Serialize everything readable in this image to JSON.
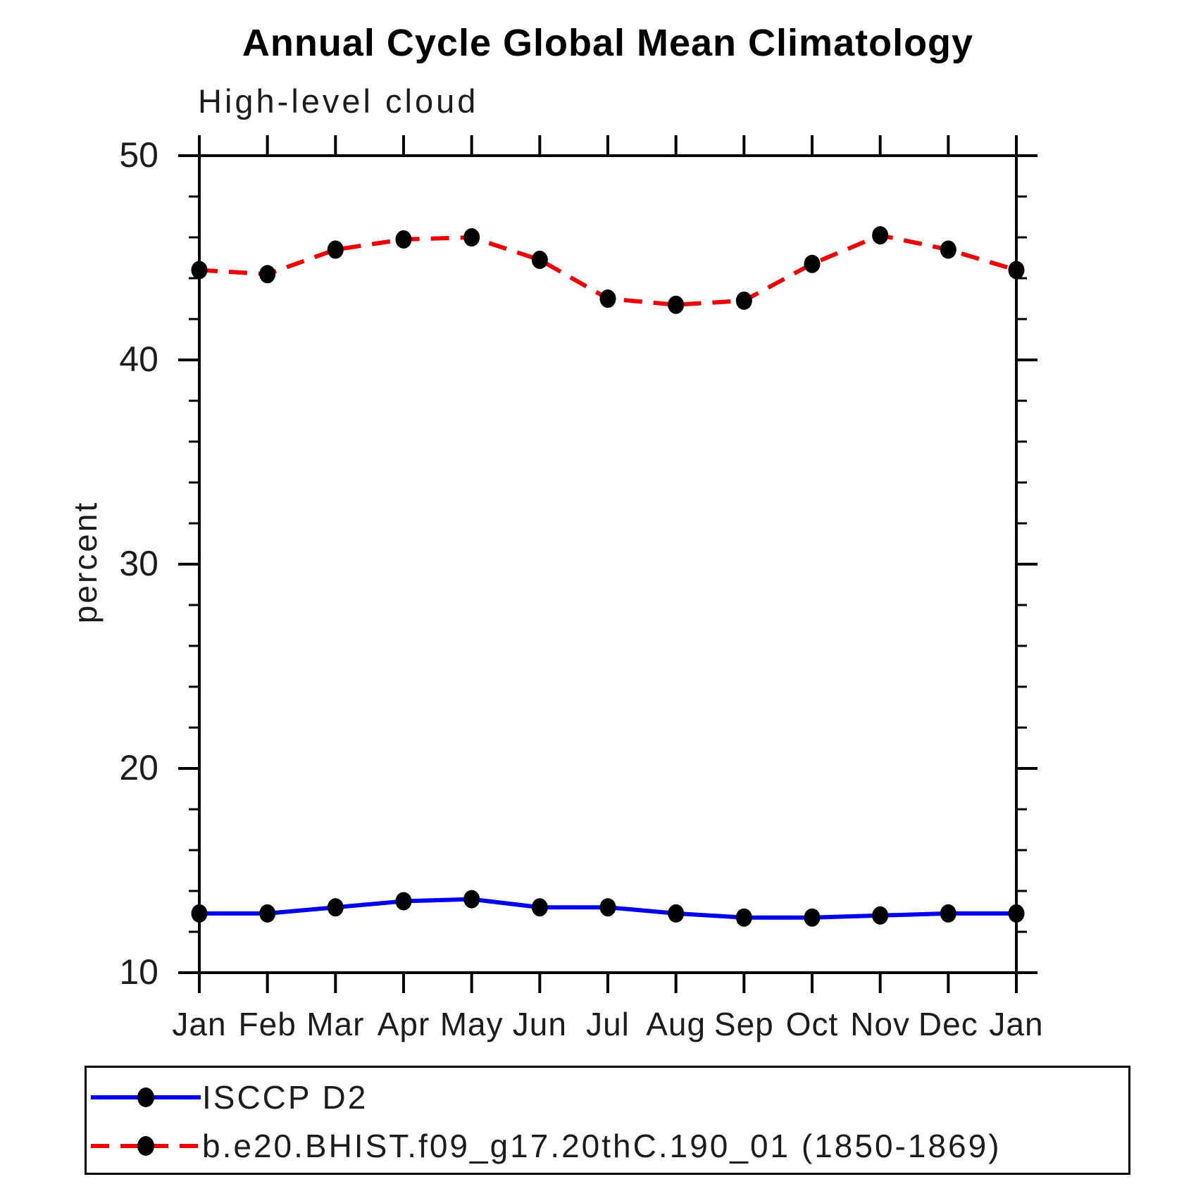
{
  "chart_data": {
    "type": "line",
    "title": "Annual Cycle Global Mean Climatology",
    "subtitle": "High-level cloud",
    "xlabel": "",
    "ylabel": "percent",
    "ylim": [
      10,
      50
    ],
    "ytick_major": [
      50,
      40,
      30,
      20,
      10
    ],
    "ytick_minor_step": 2,
    "grid": false,
    "legend_position": "bottom",
    "categories": [
      "Jan",
      "Feb",
      "Mar",
      "Apr",
      "May",
      "Jun",
      "Jul",
      "Aug",
      "Sep",
      "Oct",
      "Nov",
      "Dec",
      "Jan"
    ],
    "series": [
      {
        "name": "ISCCP D2",
        "line_style": "solid",
        "line_color": "#0000ee",
        "marker": "filled-circle",
        "marker_color": "#000000",
        "values": [
          12.9,
          12.9,
          13.2,
          13.5,
          13.6,
          13.2,
          13.2,
          12.9,
          12.7,
          12.7,
          12.8,
          12.9,
          12.9
        ]
      },
      {
        "name": "b.e20.BHIST.f09_g17.20thC.190_01 (1850-1869)",
        "line_style": "dashed",
        "line_color": "#ee0000",
        "marker": "filled-circle",
        "marker_color": "#000000",
        "values": [
          44.4,
          44.2,
          45.4,
          45.9,
          46.0,
          44.9,
          43.0,
          42.7,
          42.9,
          44.7,
          46.1,
          45.4,
          44.4
        ]
      }
    ],
    "axis_color": "#000000"
  }
}
